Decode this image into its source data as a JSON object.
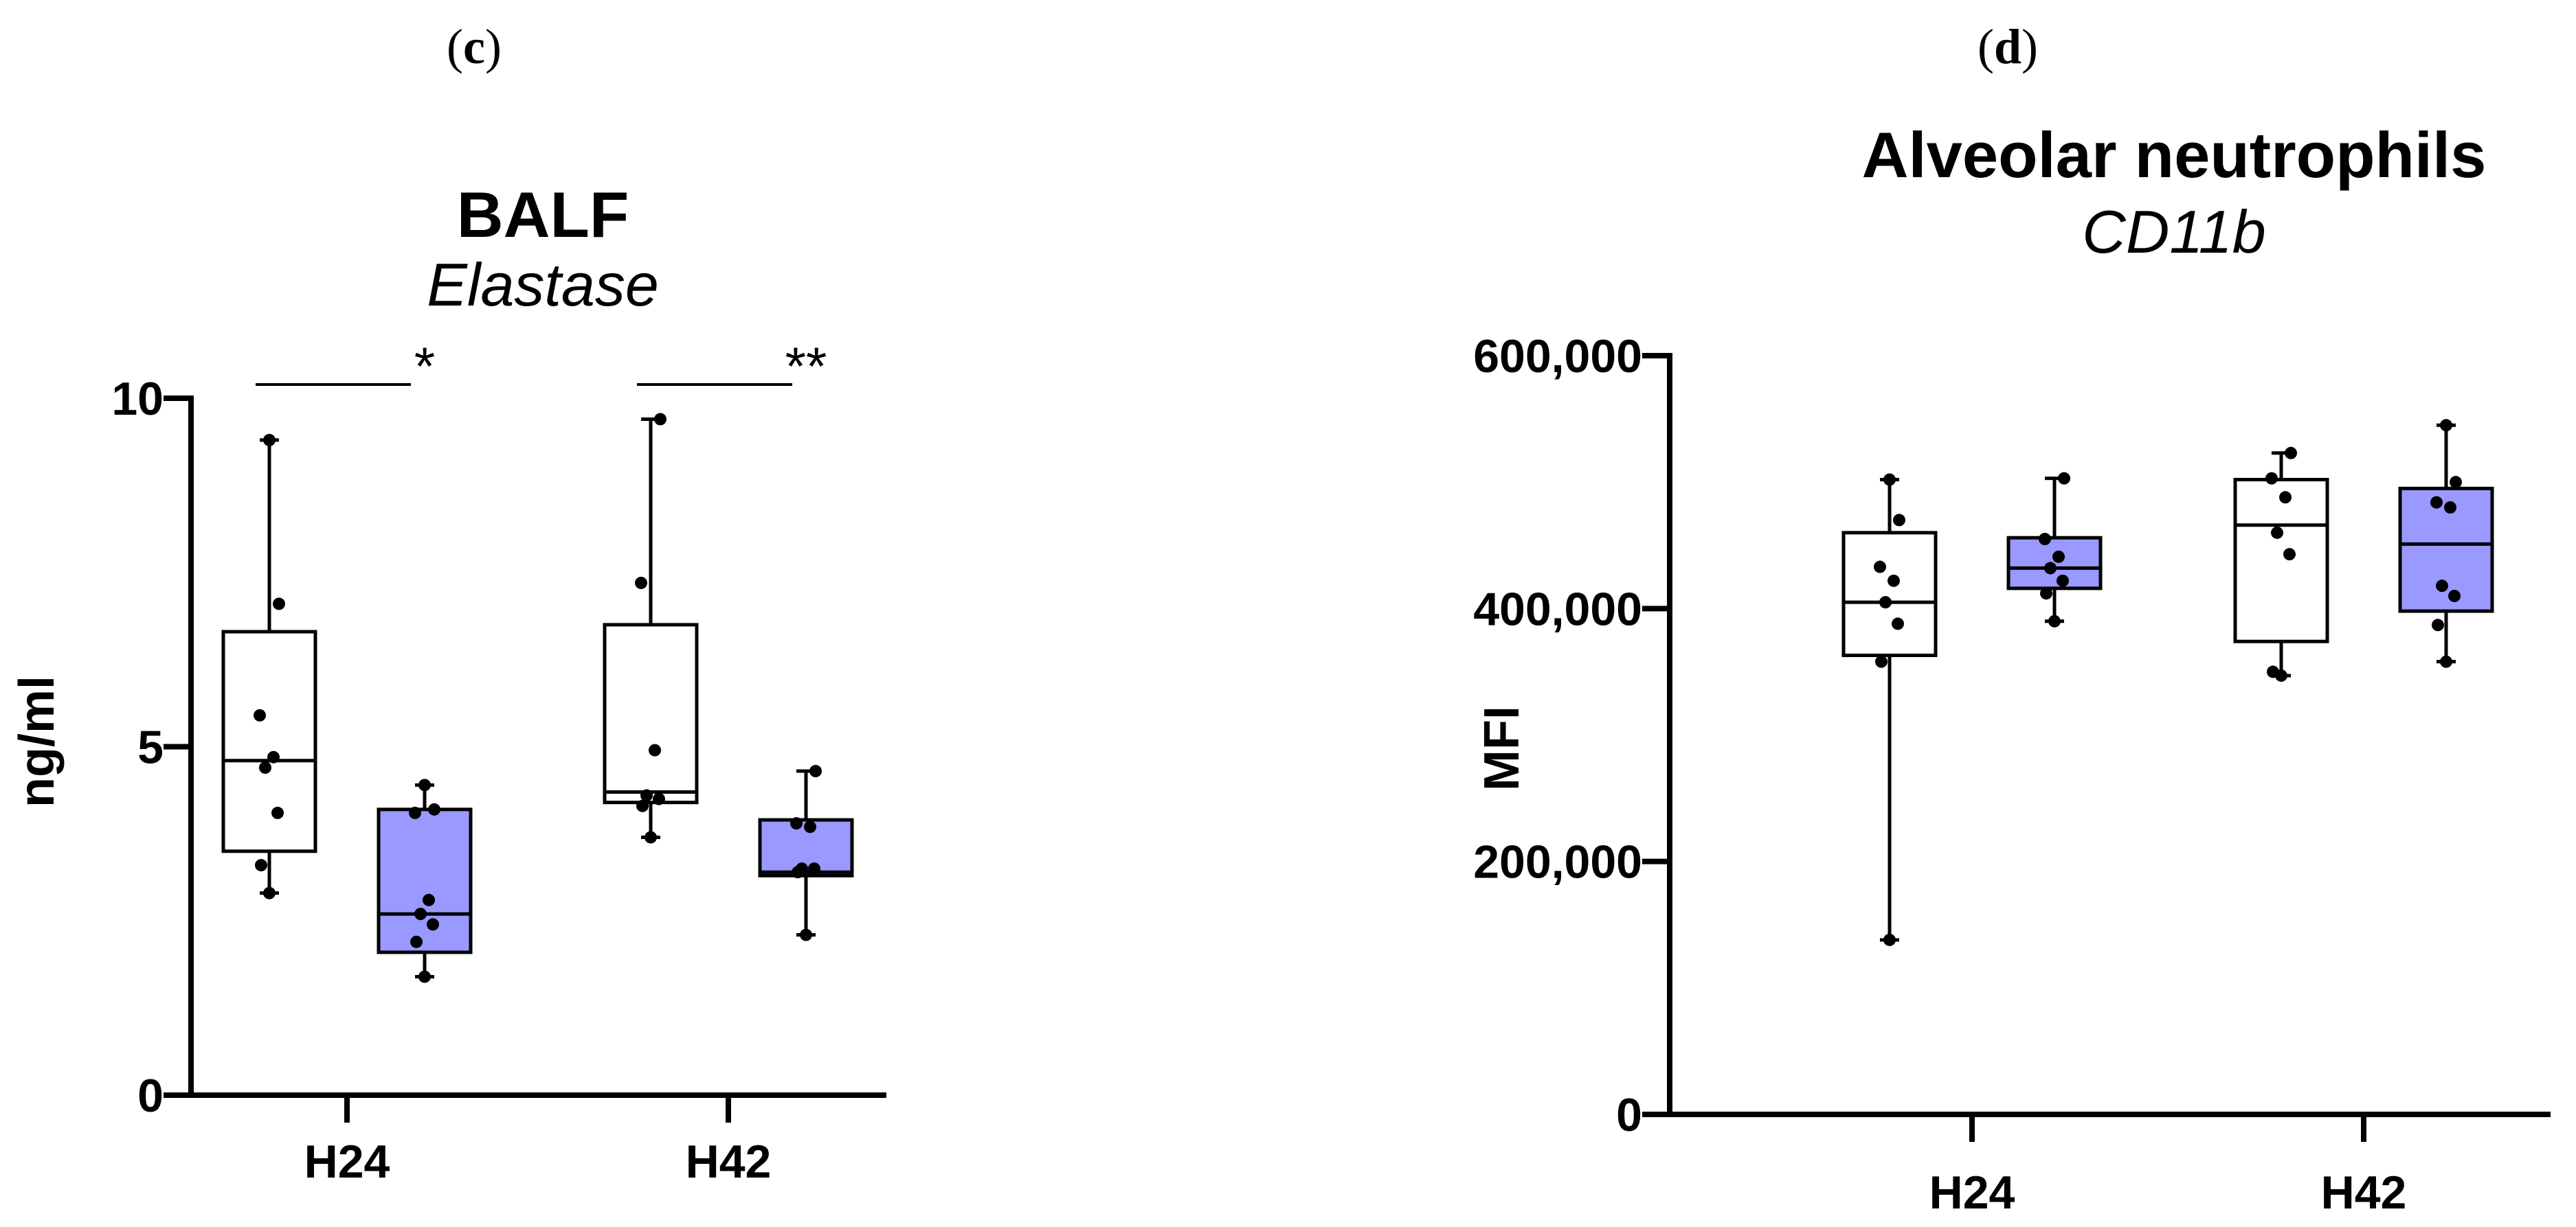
{
  "panels": [
    {
      "letter": "c",
      "title": "BALF",
      "subtitle": "Elastase",
      "ylabel": "ng/ml"
    },
    {
      "letter": "d",
      "title": "Alveolar neutrophils",
      "subtitle": "CD11b",
      "ylabel": "MFI"
    }
  ],
  "colors": {
    "control_fill": "#ffffff",
    "treated_fill": "#9999ff",
    "stroke": "#000000"
  },
  "chart_data": [
    {
      "type": "box",
      "title": "BALF",
      "subtitle": "Elastase",
      "ylabel": "ng/ml",
      "xlabel": "",
      "categories": [
        "H24",
        "H42"
      ],
      "ylim": [
        0,
        10
      ],
      "yticks": [
        0,
        5,
        10
      ],
      "ytick_labels": [
        "0",
        "5",
        "10"
      ],
      "grid": false,
      "groups": [
        {
          "category": "H24",
          "boxes": [
            {
              "fill": "white",
              "min": 2.9,
              "q1": 3.5,
              "median": 4.8,
              "q3": 6.65,
              "max": 9.4,
              "points": [
                2.9,
                3.3,
                4.05,
                4.7,
                4.85,
                5.45,
                7.05,
                9.4
              ]
            },
            {
              "fill": "blue",
              "min": 1.7,
              "q1": 2.05,
              "median": 2.6,
              "q3": 4.1,
              "max": 4.45,
              "points": [
                1.7,
                2.2,
                2.45,
                2.6,
                2.8,
                4.05,
                4.1,
                4.45
              ]
            }
          ],
          "significance": "*"
        },
        {
          "category": "H42",
          "boxes": [
            {
              "fill": "white",
              "min": 3.7,
              "q1": 4.2,
              "median": 4.35,
              "q3": 6.75,
              "max": 9.7,
              "points": [
                3.7,
                4.15,
                4.25,
                4.3,
                4.95,
                7.35,
                9.7
              ]
            },
            {
              "fill": "blue",
              "min": 2.3,
              "q1": 3.15,
              "median": 3.2,
              "q3": 3.95,
              "max": 4.65,
              "points": [
                2.3,
                3.2,
                3.25,
                3.25,
                3.85,
                3.9,
                4.65
              ]
            }
          ],
          "significance": "**"
        }
      ]
    },
    {
      "type": "box",
      "title": "Alveolar neutrophils",
      "subtitle": "CD11b",
      "ylabel": "MFI",
      "xlabel": "",
      "categories": [
        "H24",
        "H42"
      ],
      "ylim": [
        0,
        600000
      ],
      "yticks": [
        0,
        200000,
        400000,
        600000
      ],
      "ytick_labels": [
        "0",
        "200,000",
        "400,000",
        "600,000"
      ],
      "grid": false,
      "groups": [
        {
          "category": "H24",
          "boxes": [
            {
              "fill": "white",
              "min": 138000,
              "q1": 363000,
              "median": 405000,
              "q3": 460000,
              "max": 502000,
              "points": [
                138000,
                358000,
                388000,
                405000,
                422000,
                433000,
                470000,
                502000
              ]
            },
            {
              "fill": "blue",
              "min": 390000,
              "q1": 416000,
              "median": 432000,
              "q3": 456000,
              "max": 503000,
              "points": [
                390000,
                412000,
                422000,
                432000,
                441000,
                455000,
                503000
              ]
            }
          ],
          "significance": ""
        },
        {
          "category": "H42",
          "boxes": [
            {
              "fill": "white",
              "min": 347000,
              "q1": 374000,
              "median": 466000,
              "q3": 502000,
              "max": 523000,
              "points": [
                347000,
                350000,
                443000,
                460000,
                488000,
                503000,
                523000
              ]
            },
            {
              "fill": "blue",
              "min": 358000,
              "q1": 398000,
              "median": 451000,
              "q3": 495000,
              "max": 545000,
              "points": [
                358000,
                387000,
                410000,
                418000,
                480000,
                484000,
                500000,
                545000
              ]
            }
          ],
          "significance": ""
        }
      ]
    }
  ]
}
